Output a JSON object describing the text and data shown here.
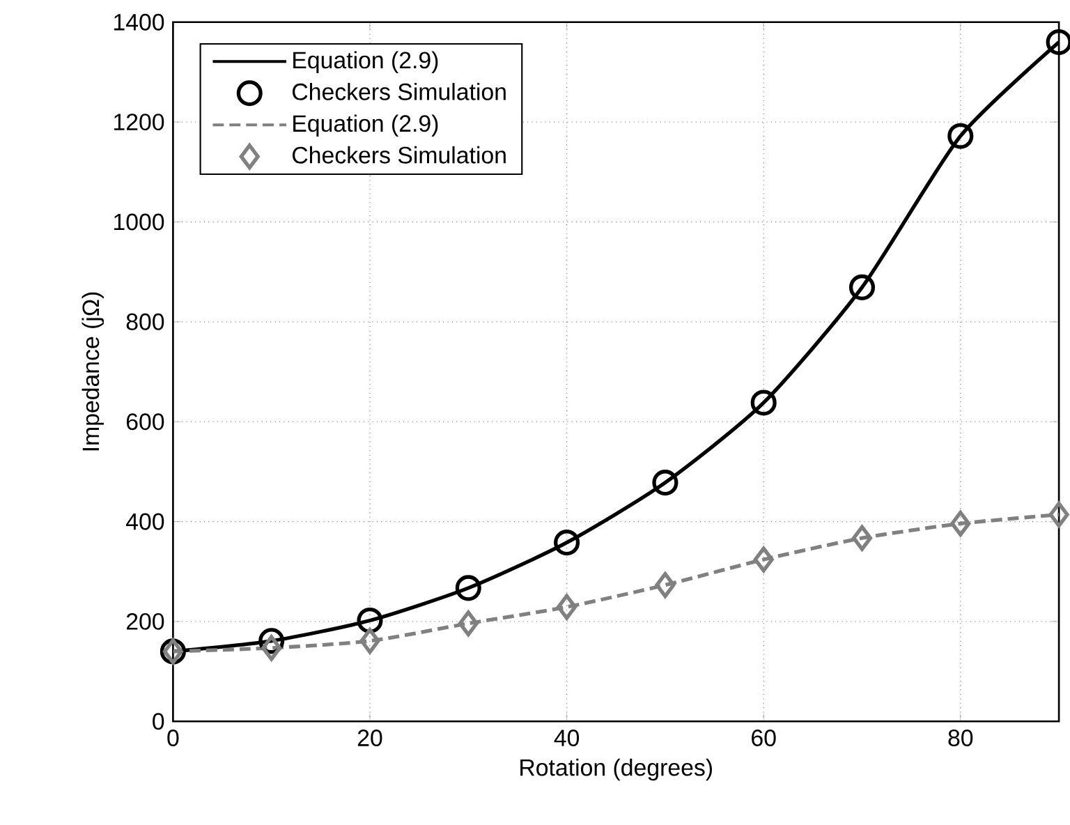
{
  "chart_data": {
    "type": "line",
    "xlabel": "Rotation (degrees)",
    "ylabel": "Impedance (jΩ)",
    "x": [
      0,
      10,
      20,
      30,
      40,
      50,
      60,
      70,
      80,
      90
    ],
    "series": [
      {
        "name": "Equation (2.9)",
        "color": "#000000",
        "line_style": "solid",
        "marker": "none",
        "values": [
          140,
          161,
          202,
          267,
          358,
          478,
          638,
          869,
          1172,
          1360
        ]
      },
      {
        "name": "Checkers Simulation",
        "type": "scatter",
        "color": "#000000",
        "marker": "circle",
        "values": [
          140,
          161,
          202,
          267,
          358,
          478,
          638,
          869,
          1172,
          1360
        ]
      },
      {
        "name": "Equation (2.9)",
        "color": "#808080",
        "line_style": "dashed",
        "marker": "none",
        "values": [
          140,
          147,
          161,
          196,
          229,
          273,
          324,
          367,
          396,
          414
        ]
      },
      {
        "name": "Checkers Simulation",
        "type": "scatter",
        "color": "#808080",
        "marker": "diamond",
        "values": [
          140,
          147,
          161,
          196,
          229,
          273,
          324,
          367,
          396,
          414
        ]
      }
    ],
    "xlim": [
      0,
      90
    ],
    "ylim": [
      0,
      1400
    ],
    "xticks": [
      0,
      20,
      40,
      60,
      80
    ],
    "yticks": [
      0,
      200,
      400,
      600,
      800,
      1000,
      1200,
      1400
    ],
    "grid": true,
    "legend": "top left"
  }
}
